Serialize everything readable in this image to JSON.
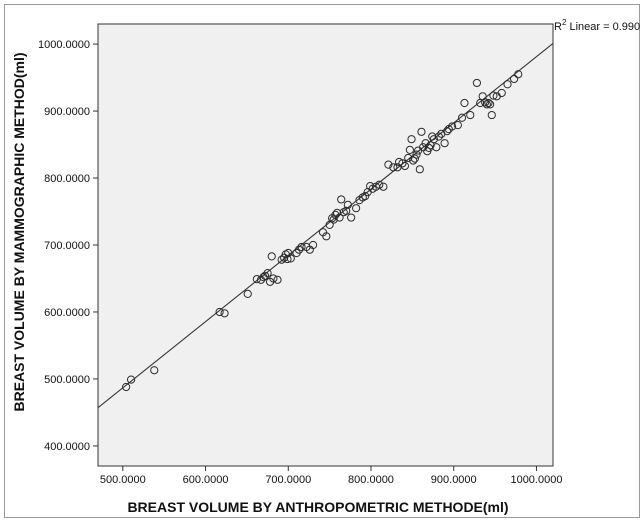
{
  "chart_data": {
    "type": "scatter",
    "title": "",
    "xlabel": "BREAST VOLUME BY ANTHROPOMETRIC METHODE(ml)",
    "ylabel": "BREAST VOLUME BY MAMMOGRAPHIC METHOD(ml)",
    "xlim": [
      470,
      1020
    ],
    "ylim": [
      370,
      1030
    ],
    "x_ticks": [
      500,
      600,
      700,
      800,
      900,
      1000
    ],
    "x_tick_labels": [
      "500.0000",
      "600.0000",
      "700.0000",
      "800.0000",
      "900.0000",
      "1000.0000"
    ],
    "y_ticks": [
      400,
      500,
      600,
      700,
      800,
      900,
      1000
    ],
    "y_tick_labels": [
      "400.0000",
      "500.0000",
      "600.0000",
      "700.0000",
      "800.0000",
      "900.0000",
      "1000.0000"
    ],
    "grid": false,
    "background_color": "#f0f0f0",
    "marker": "open-circle",
    "fit_line": {
      "label_prefix": "R",
      "label_superscript": "2",
      "label_rest": " Linear = 0.990",
      "x": [
        470,
        1020
      ],
      "y": [
        457,
        1001
      ]
    },
    "points": [
      [
        504,
        488
      ],
      [
        510,
        499
      ],
      [
        538,
        513
      ],
      [
        617,
        600
      ],
      [
        623,
        598
      ],
      [
        651,
        627
      ],
      [
        662,
        649
      ],
      [
        667,
        648
      ],
      [
        670,
        652
      ],
      [
        672,
        654
      ],
      [
        675,
        658
      ],
      [
        678,
        645
      ],
      [
        680,
        683
      ],
      [
        682,
        650
      ],
      [
        687,
        648
      ],
      [
        692,
        678
      ],
      [
        695,
        681
      ],
      [
        697,
        686
      ],
      [
        699,
        679
      ],
      [
        700,
        688
      ],
      [
        703,
        680
      ],
      [
        710,
        688
      ],
      [
        713,
        693
      ],
      [
        716,
        697
      ],
      [
        722,
        697
      ],
      [
        726,
        693
      ],
      [
        730,
        700
      ],
      [
        742,
        719
      ],
      [
        746,
        713
      ],
      [
        750,
        730
      ],
      [
        753,
        740
      ],
      [
        755,
        738
      ],
      [
        757,
        745
      ],
      [
        759,
        748
      ],
      [
        762,
        741
      ],
      [
        764,
        768
      ],
      [
        767,
        749
      ],
      [
        770,
        751
      ],
      [
        772,
        760
      ],
      [
        776,
        741
      ],
      [
        782,
        755
      ],
      [
        786,
        767
      ],
      [
        790,
        771
      ],
      [
        793,
        773
      ],
      [
        796,
        779
      ],
      [
        799,
        788
      ],
      [
        802,
        784
      ],
      [
        806,
        787
      ],
      [
        810,
        790
      ],
      [
        815,
        787
      ],
      [
        821,
        820
      ],
      [
        827,
        816
      ],
      [
        832,
        816
      ],
      [
        834,
        824
      ],
      [
        838,
        822
      ],
      [
        841,
        818
      ],
      [
        845,
        830
      ],
      [
        847,
        842
      ],
      [
        849,
        858
      ],
      [
        851,
        826
      ],
      [
        853,
        829
      ],
      [
        855,
        835
      ],
      [
        857,
        841
      ],
      [
        859,
        813
      ],
      [
        861,
        869
      ],
      [
        863,
        846
      ],
      [
        866,
        852
      ],
      [
        868,
        840
      ],
      [
        870,
        845
      ],
      [
        872,
        849
      ],
      [
        874,
        862
      ],
      [
        876,
        858
      ],
      [
        879,
        846
      ],
      [
        882,
        862
      ],
      [
        885,
        866
      ],
      [
        889,
        852
      ],
      [
        892,
        870
      ],
      [
        894,
        873
      ],
      [
        898,
        877
      ],
      [
        905,
        879
      ],
      [
        910,
        890
      ],
      [
        913,
        912
      ],
      [
        920,
        894
      ],
      [
        928,
        942
      ],
      [
        932,
        912
      ],
      [
        935,
        922
      ],
      [
        938,
        913
      ],
      [
        940,
        910
      ],
      [
        942,
        912
      ],
      [
        944,
        910
      ],
      [
        946,
        894
      ],
      [
        948,
        923
      ],
      [
        952,
        922
      ],
      [
        958,
        927
      ],
      [
        965,
        940
      ],
      [
        973,
        948
      ],
      [
        978,
        955
      ]
    ]
  }
}
